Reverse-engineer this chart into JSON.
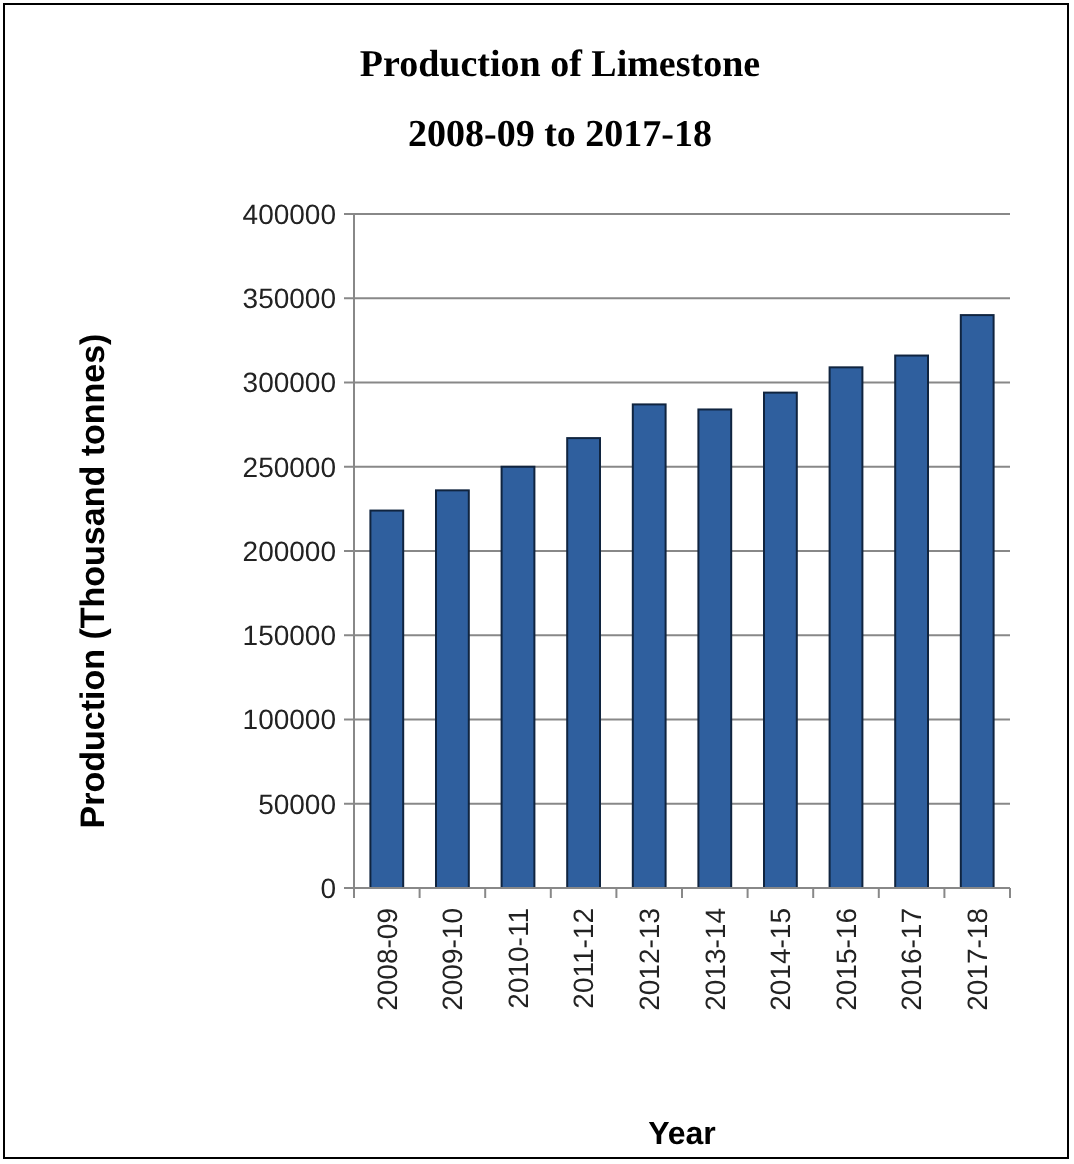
{
  "chart_data": {
    "type": "bar",
    "title": "Production of Limestone",
    "subtitle": "2008-09 to 2017-18",
    "xlabel": "Year",
    "ylabel": "Production (Thousand tonnes)",
    "categories": [
      "2008-09",
      "2009-10",
      "2010-11",
      "2011-12",
      "2012-13",
      "2013-14",
      "2014-15",
      "2015-16",
      "2016-17",
      "2017-18"
    ],
    "values": [
      224000,
      236000,
      250000,
      267000,
      287000,
      284000,
      294000,
      309000,
      316000,
      340000
    ],
    "color": "#2f5f9e",
    "ylim": [
      0,
      400000
    ],
    "yticks": [
      0,
      50000,
      100000,
      150000,
      200000,
      250000,
      300000,
      350000,
      400000
    ],
    "grid": "y"
  }
}
